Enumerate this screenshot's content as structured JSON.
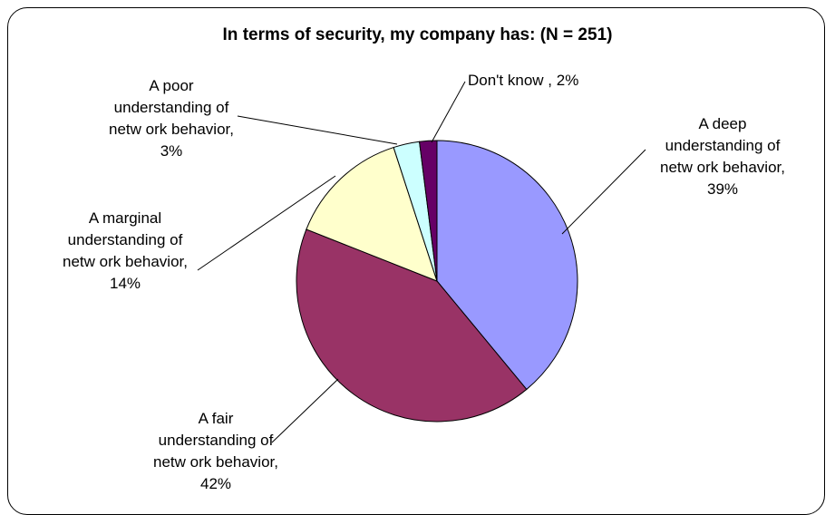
{
  "chart_data": {
    "type": "pie",
    "title": "In terms of security, my company has: (N = 251)",
    "slices": [
      {
        "label": "A deep understanding of netw ork behavior",
        "value": 39,
        "display": "39%",
        "color": "#9999ff"
      },
      {
        "label": "A fair understanding of netw ork behavior",
        "value": 42,
        "display": "42%",
        "color": "#993366"
      },
      {
        "label": "A marginal understanding of netw ork behavior",
        "value": 14,
        "display": "14%",
        "color": "#ffffcc"
      },
      {
        "label": "A poor understanding of netw ork behavior",
        "value": 3,
        "display": "3%",
        "color": "#ccffff"
      },
      {
        "label": "Don't know",
        "value": 2,
        "display": "2%",
        "color": "#660066"
      }
    ],
    "label_lines": [
      [
        "A deep",
        "understanding of",
        "netw ork behavior,",
        "39%"
      ],
      [
        "A fair",
        "understanding of",
        "netw ork behavior,",
        "42%"
      ],
      [
        "A marginal",
        "understanding of",
        "netw ork behavior,",
        "14%"
      ],
      [
        "A poor",
        "understanding of",
        "netw ork behavior,",
        "3%"
      ],
      [
        "Don't know , 2%"
      ]
    ],
    "legend": "none",
    "grid": false
  }
}
